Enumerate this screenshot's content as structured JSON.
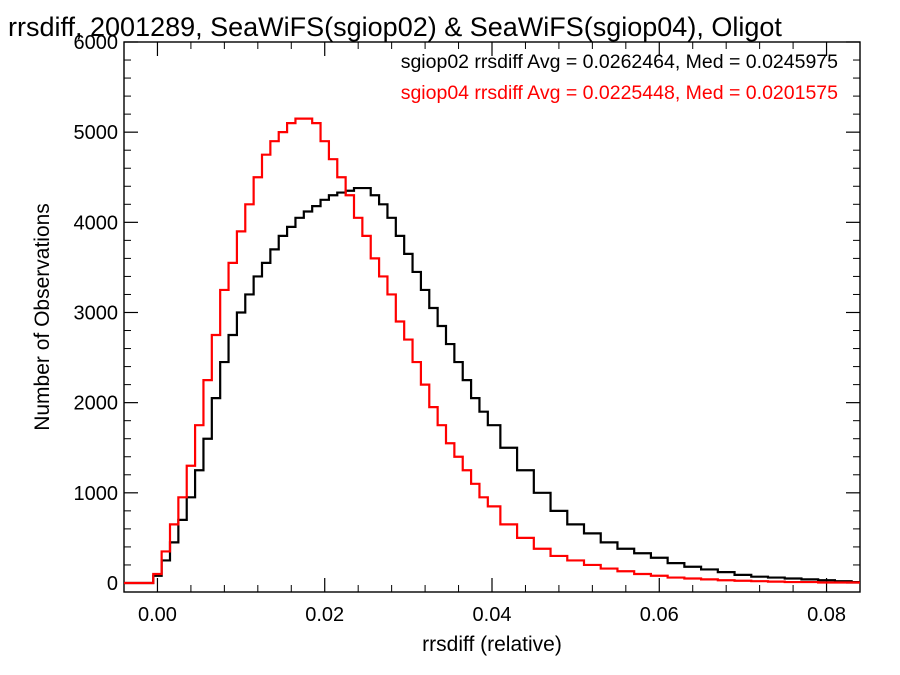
{
  "chart_data": {
    "type": "line",
    "title": "rrsdiff, 2001289, SeaWiFS(sgiop02) & SeaWiFS(sgiop04), Oligot",
    "xlabel": "rrsdiff (relative)",
    "ylabel": "Number of Observations",
    "xlim": [
      -0.004,
      0.084
    ],
    "ylim": [
      -100,
      6000
    ],
    "xticks": [
      0.0,
      0.02,
      0.04,
      0.06,
      0.08
    ],
    "xtick_labels": [
      "0.00",
      "0.02",
      "0.04",
      "0.06",
      "0.08"
    ],
    "yticks": [
      0,
      1000,
      2000,
      3000,
      4000,
      5000,
      6000
    ],
    "ytick_labels": [
      "0",
      "1000",
      "2000",
      "3000",
      "4000",
      "5000",
      "6000"
    ],
    "grid": false,
    "line_shape": "histogram-step",
    "annotations": [
      {
        "text": "sgiop02 rrsdiff Avg = 0.0262464, Med = 0.0245975",
        "color": "#000000"
      },
      {
        "text": "sgiop04 rrsdiff Avg = 0.0225448, Med = 0.0201575",
        "color": "#ff0000"
      }
    ],
    "series": [
      {
        "color": "#000000",
        "x": [
          -0.004,
          -0.001,
          0.0,
          0.001,
          0.002,
          0.003,
          0.004,
          0.005,
          0.006,
          0.007,
          0.008,
          0.009,
          0.01,
          0.011,
          0.012,
          0.013,
          0.014,
          0.015,
          0.016,
          0.017,
          0.018,
          0.019,
          0.02,
          0.021,
          0.022,
          0.023,
          0.024,
          0.025,
          0.026,
          0.027,
          0.028,
          0.029,
          0.03,
          0.031,
          0.032,
          0.033,
          0.034,
          0.035,
          0.036,
          0.037,
          0.038,
          0.039,
          0.04,
          0.042,
          0.044,
          0.046,
          0.048,
          0.05,
          0.052,
          0.054,
          0.056,
          0.058,
          0.06,
          0.062,
          0.064,
          0.066,
          0.068,
          0.07,
          0.072,
          0.074,
          0.076,
          0.078,
          0.08,
          0.082,
          0.084
        ],
        "y": [
          0,
          0,
          80,
          250,
          450,
          700,
          950,
          1250,
          1600,
          2050,
          2450,
          2750,
          3000,
          3200,
          3400,
          3550,
          3700,
          3850,
          3950,
          4050,
          4120,
          4180,
          4250,
          4300,
          4330,
          4350,
          4380,
          4380,
          4300,
          4200,
          4050,
          3850,
          3650,
          3450,
          3250,
          3050,
          2850,
          2650,
          2450,
          2250,
          2050,
          1900,
          1750,
          1500,
          1250,
          1000,
          800,
          650,
          550,
          450,
          380,
          330,
          280,
          220,
          180,
          150,
          120,
          90,
          70,
          60,
          50,
          40,
          30,
          20,
          10
        ]
      },
      {
        "color": "#ff0000",
        "x": [
          -0.004,
          -0.001,
          0.0,
          0.001,
          0.002,
          0.003,
          0.004,
          0.005,
          0.006,
          0.007,
          0.008,
          0.009,
          0.01,
          0.011,
          0.012,
          0.013,
          0.014,
          0.015,
          0.016,
          0.017,
          0.018,
          0.019,
          0.02,
          0.021,
          0.022,
          0.023,
          0.024,
          0.025,
          0.026,
          0.027,
          0.028,
          0.029,
          0.03,
          0.031,
          0.032,
          0.033,
          0.034,
          0.035,
          0.036,
          0.037,
          0.038,
          0.039,
          0.04,
          0.042,
          0.044,
          0.046,
          0.048,
          0.05,
          0.052,
          0.054,
          0.056,
          0.058,
          0.06,
          0.062,
          0.064,
          0.066,
          0.068,
          0.07,
          0.072,
          0.074,
          0.076,
          0.078,
          0.08,
          0.082,
          0.084
        ],
        "y": [
          0,
          0,
          100,
          350,
          650,
          950,
          1300,
          1750,
          2250,
          2750,
          3250,
          3550,
          3900,
          4200,
          4500,
          4750,
          4900,
          5000,
          5100,
          5150,
          5150,
          5100,
          4900,
          4700,
          4500,
          4300,
          4050,
          3850,
          3600,
          3400,
          3200,
          2900,
          2700,
          2450,
          2200,
          1950,
          1750,
          1550,
          1400,
          1250,
          1100,
          950,
          850,
          650,
          500,
          380,
          300,
          250,
          200,
          160,
          130,
          100,
          80,
          60,
          50,
          40,
          30,
          25,
          20,
          15,
          10,
          10,
          5,
          5,
          5
        ]
      }
    ]
  }
}
